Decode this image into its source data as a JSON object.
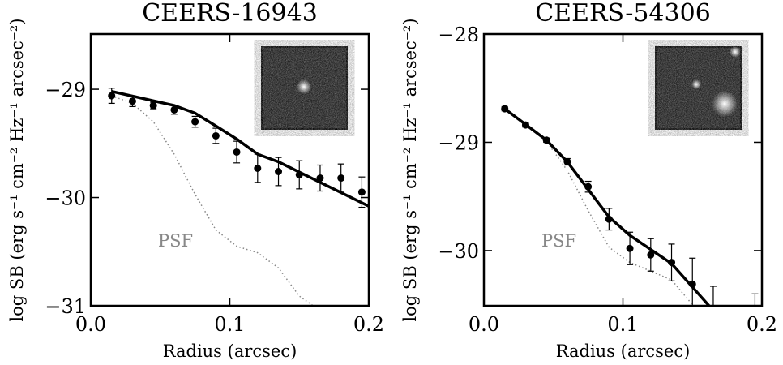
{
  "chart_data": [
    {
      "type": "profile",
      "title": "CEERS-16943",
      "xlabel": "Radius (arcsec)",
      "ylabel": "log SB (erg s⁻¹ cm⁻² Hz⁻¹ arcsec⁻²)",
      "annotation": "PSF",
      "xlim": [
        0,
        0.2
      ],
      "ylim": [
        -31,
        -28.49
      ],
      "xticks": [
        {
          "value": 0,
          "label": "0.0"
        },
        0.1,
        0.2
      ],
      "yticks": [
        {
          "value": -31,
          "label": "−31"
        },
        {
          "value": -30,
          "label": "−30"
        },
        {
          "value": -29,
          "label": "−29"
        }
      ],
      "points": {
        "color": "#000000",
        "x": [
          0.015,
          0.03,
          0.045,
          0.06,
          0.075,
          0.09,
          0.105,
          0.12,
          0.135,
          0.15,
          0.165,
          0.18,
          0.195
        ],
        "y": [
          -29.06,
          -29.11,
          -29.15,
          -29.19,
          -29.3,
          -29.43,
          -29.58,
          -29.73,
          -29.76,
          -29.79,
          -29.82,
          -29.82,
          -29.95
        ],
        "yerr": [
          0.07,
          0.05,
          0.03,
          0.04,
          0.05,
          0.07,
          0.1,
          0.13,
          0.13,
          0.13,
          0.12,
          0.13,
          0.14
        ]
      },
      "model": {
        "color": "#000000",
        "x": [
          0.015,
          0.06,
          0.075,
          0.09,
          0.105,
          0.12,
          0.135,
          0.165,
          0.2
        ],
        "y": [
          -29.02,
          -29.15,
          -29.22,
          -29.34,
          -29.46,
          -29.6,
          -29.67,
          -29.86,
          -30.08
        ]
      },
      "psf": {
        "color": "#888888",
        "x": [
          0.015,
          0.03,
          0.045,
          0.06,
          0.075,
          0.09,
          0.105,
          0.12,
          0.135,
          0.15,
          0.16
        ],
        "y": [
          -29.06,
          -29.13,
          -29.3,
          -29.6,
          -29.97,
          -30.3,
          -30.45,
          -30.51,
          -30.65,
          -30.91,
          -31
        ]
      }
    },
    {
      "type": "profile",
      "title": "CEERS-54306",
      "xlabel": "Radius (arcsec)",
      "ylabel": "log SB (erg s⁻¹ cm⁻² Hz⁻¹ arcsec⁻²)",
      "annotation": "PSF",
      "xlim": [
        0,
        0.2
      ],
      "ylim": [
        -30.51,
        -28
      ],
      "xticks": [
        {
          "value": 0,
          "label": "0.0"
        },
        0.1,
        0.2
      ],
      "yticks": [
        {
          "value": -30,
          "label": "−30"
        },
        {
          "value": -29,
          "label": "−29"
        },
        {
          "value": -28,
          "label": "−28"
        }
      ],
      "points": {
        "color": "#000000",
        "x": [
          0.015,
          0.03,
          0.045,
          0.06,
          0.075,
          0.09,
          0.105,
          0.12,
          0.135,
          0.15,
          0.165,
          0.195
        ],
        "y": [
          -28.69,
          -28.84,
          -28.98,
          -29.18,
          -29.41,
          -29.71,
          -29.98,
          -30.04,
          -30.11,
          -30.31,
          -30.62,
          -30.68
        ],
        "yerr": [
          0.02,
          0.02,
          0.02,
          0.03,
          0.05,
          0.1,
          0.15,
          0.15,
          0.17,
          0.24,
          0.29,
          0.28
        ]
      },
      "model": {
        "color": "#000000",
        "x": [
          0.015,
          0.045,
          0.06,
          0.09,
          0.105,
          0.135,
          0.162
        ],
        "y": [
          -28.69,
          -28.98,
          -29.18,
          -29.69,
          -29.86,
          -30.12,
          -30.51
        ]
      },
      "psf": {
        "color": "#888888",
        "x": [
          0.015,
          0.045,
          0.06,
          0.075,
          0.09,
          0.105,
          0.135,
          0.15
        ],
        "y": [
          -28.69,
          -28.99,
          -29.26,
          -29.63,
          -29.97,
          -30.11,
          -30.27,
          -30.5
        ]
      }
    }
  ]
}
